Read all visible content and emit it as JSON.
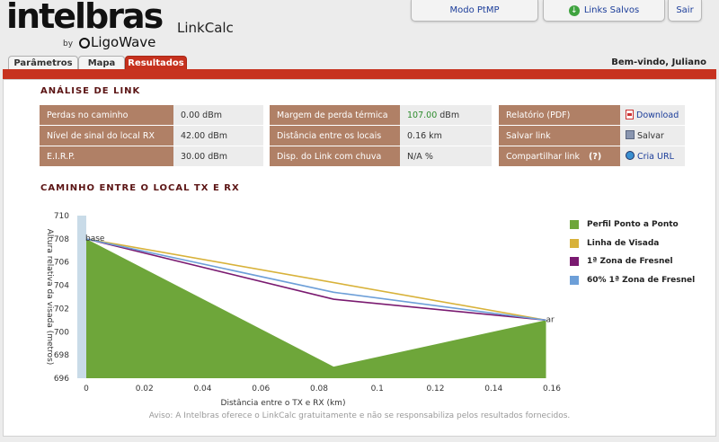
{
  "brand": {
    "name": "intelbras",
    "by": "by",
    "partner": "LigoWave",
    "app_title": "LinkCalc"
  },
  "top_buttons": {
    "ptmp": "Modo PtMP",
    "saved_links": "Links Salvos",
    "exit": "Sair"
  },
  "tabs": [
    {
      "label": "Parâmetros"
    },
    {
      "label": "Mapa"
    },
    {
      "label": "Resultados"
    }
  ],
  "welcome": "Bem-vindo, Juliano",
  "analysis": {
    "title": "ANÁLISE DE LINK",
    "col1": [
      {
        "label": "Perdas no caminho",
        "value": "0.00 dBm"
      },
      {
        "label": "Nível de sinal do local RX",
        "value": "42.00 dBm"
      },
      {
        "label": "E.I.R.P.",
        "value": "30.00 dBm"
      }
    ],
    "col2": [
      {
        "label": "Margem de perda térmica",
        "value": "107.00",
        "unit": "dBm"
      },
      {
        "label": "Distância entre os locais",
        "value": "0.16 km"
      },
      {
        "label": "Disp. do Link com chuva",
        "value": "N/A %"
      }
    ],
    "col3": [
      {
        "label": "Relatório (PDF)",
        "action": "Download",
        "icon": "pdf-icon"
      },
      {
        "label": "Salvar link",
        "action": "Salvar",
        "icon": "save-icon"
      },
      {
        "label": "Compartilhar link",
        "help": "(?)",
        "action": "Cria URL",
        "icon": "globe-icon"
      }
    ]
  },
  "path_title": "CAMINHO ENTRE O LOCAL TX E RX",
  "chart_data": {
    "type": "area",
    "xlabel": "Distância entre o TX e RX (km)",
    "ylabel": "Altura relativa da visada (metros)",
    "xlim": [
      0,
      0.16
    ],
    "ylim": [
      696,
      710
    ],
    "xticks": [
      "0",
      "0.02",
      "0.04",
      "0.06",
      "0.08",
      "0.1",
      "0.12",
      "0.14",
      "0.16"
    ],
    "yticks": [
      "696",
      "698",
      "700",
      "702",
      "704",
      "706",
      "708",
      "710"
    ],
    "point_labels": [
      {
        "text": "base",
        "x": 0,
        "y": 708
      },
      {
        "text": "ar",
        "x": 0.158,
        "y": 701
      }
    ],
    "series": [
      {
        "name": "Perfil Ponto a Ponto",
        "color": "#6ea63a",
        "x": [
          0,
          0.085,
          0.158
        ],
        "y": [
          708,
          697,
          701
        ]
      },
      {
        "name": "Linha de Visada",
        "color": "#d8b23a",
        "x": [
          0,
          0.158
        ],
        "y": [
          708,
          701
        ]
      },
      {
        "name": "1ª Zona de Fresnel",
        "color": "#7a1a70",
        "x": [
          0,
          0.085,
          0.158
        ],
        "y": [
          708,
          702.8,
          701
        ]
      },
      {
        "name": "60% 1ª Zona de Fresnel",
        "color": "#6d9fd8",
        "x": [
          0,
          0.085,
          0.158
        ],
        "y": [
          708,
          703.4,
          701
        ]
      }
    ],
    "legend": "right",
    "grid": false
  },
  "disclaimer": "Aviso: A Intelbras oferece o LinkCalc gratuitamente e não se responsabiliza pelos resultados fornecidos."
}
